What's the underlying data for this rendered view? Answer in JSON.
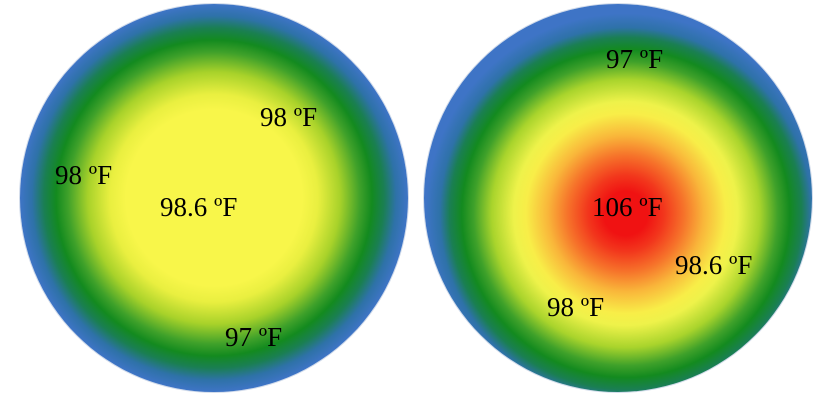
{
  "left_circle": {
    "labels": {
      "center": "98.6 ºF",
      "upper_right": "98 ºF",
      "left": "98 ºF",
      "bottom": "97 ºF"
    },
    "colors": {
      "core": "#f8f64a",
      "middle": "#138a1f",
      "edge": "#3e74c6"
    }
  },
  "right_circle": {
    "labels": {
      "top": "97 ºF",
      "center": "106 ºF",
      "right": "98.6 ºF",
      "lower_left": "98 ºF"
    },
    "colors": {
      "core": "#f01212",
      "inner": "#f8ee48",
      "middle": "#138a1f",
      "edge": "#3e74c6"
    }
  }
}
